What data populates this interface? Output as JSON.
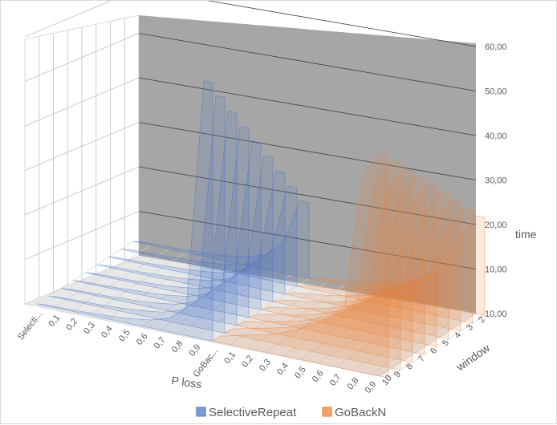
{
  "chart_data": {
    "type": "area",
    "subtype": "3d-area",
    "title": "",
    "xlabel": "P loss",
    "ylabel": "time",
    "depth_label": "window",
    "z_tick_labels": [
      "10,00",
      "10,00",
      "20,00",
      "30,00",
      "40,00",
      "50,00",
      "60,00"
    ],
    "x_tick_labels": [
      "Selecti...",
      "0,1",
      "0,2",
      "0,3",
      "0,4",
      "0,5",
      "0,6",
      "0,7",
      "0,8",
      "0,9",
      "GoBac...",
      "0,1",
      "0,2",
      "0,3",
      "0,4",
      "0,5",
      "0,6",
      "0,7",
      "0,8",
      "0,9"
    ],
    "depth_tick_labels": [
      "2",
      "3",
      "4",
      "5",
      "6",
      "7",
      "8",
      "9",
      "10"
    ],
    "windows": [
      2,
      3,
      4,
      5,
      6,
      7,
      8,
      9,
      10
    ],
    "series": [
      {
        "name": "SelectiveRepeat",
        "color": "#4472C4",
        "p_loss": [
          0,
          0.1,
          0.2,
          0.3,
          0.4,
          0.5,
          0.6,
          0.7,
          0.8,
          0.9
        ],
        "values_window_2": [
          0.3,
          0.4,
          0.5,
          0.7,
          0.9,
          1.3,
          1.9,
          3.2,
          6.5,
          17.0
        ],
        "values_window_10": [
          0.2,
          0.3,
          0.4,
          0.6,
          0.8,
          1.2,
          1.8,
          3.0,
          6.0,
          58.0
        ]
      },
      {
        "name": "GoBackN",
        "color": "#ED7D31",
        "p_loss": [
          0,
          0.1,
          0.2,
          0.3,
          0.4,
          0.5,
          0.6,
          0.7,
          0.8,
          0.9
        ],
        "values_window_2": [
          0.5,
          0.8,
          1.2,
          1.8,
          2.6,
          3.8,
          5.5,
          8.0,
          16.0,
          22.0
        ],
        "values_window_10": [
          1.5,
          2.5,
          3.5,
          4.5,
          6.0,
          8.0,
          10.0,
          14.0,
          44.0,
          50.0
        ]
      }
    ],
    "legend": {
      "position": "bottom",
      "entries": [
        "SelectiveRepeat",
        "GoBackN"
      ]
    },
    "grid": true,
    "colors": {
      "back_wall": "#A6A6A6",
      "gridline": "#404040"
    }
  }
}
